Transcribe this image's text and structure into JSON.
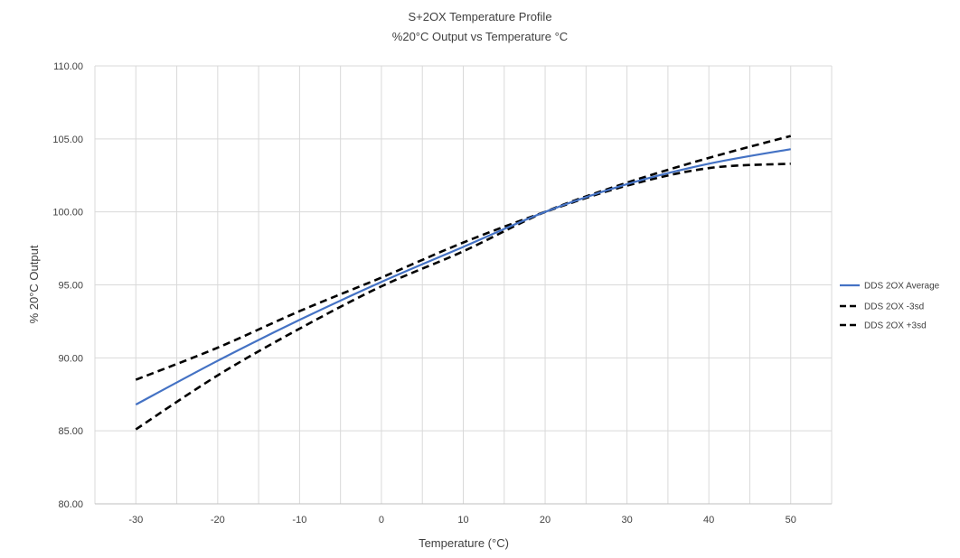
{
  "chart_data": {
    "type": "line",
    "title": "S+2OX Temperature Profile",
    "subtitle": "%20°C Output vs Temperature °C",
    "xlabel": "Temperature (°C)",
    "ylabel": "% 20°C Output",
    "xlim": [
      -35,
      55
    ],
    "ylim": [
      80,
      110
    ],
    "x_ticks": [
      -30,
      -20,
      -10,
      0,
      10,
      20,
      30,
      40,
      50
    ],
    "x_tick_labels": [
      "-30",
      "-20",
      "-10",
      "0",
      "10",
      "20",
      "30",
      "40",
      "50"
    ],
    "y_ticks": [
      80,
      85,
      90,
      95,
      100,
      105,
      110
    ],
    "y_tick_labels": [
      "80.00",
      "85.00",
      "90.00",
      "95.00",
      "100.00",
      "105.00",
      "110.00"
    ],
    "grid": true,
    "legend_position": "right",
    "x": [
      -30,
      -20,
      -10,
      0,
      10,
      20,
      30,
      40,
      50
    ],
    "series": [
      {
        "name": "DDS 2OX Average",
        "color": "#4472c4",
        "style": "solid",
        "values": [
          86.8,
          89.8,
          92.6,
          95.2,
          97.6,
          100.0,
          101.9,
          103.3,
          104.3
        ]
      },
      {
        "name": "DDS 2OX -3sd",
        "color": "#000000",
        "style": "dashed",
        "values": [
          88.5,
          90.7,
          93.2,
          95.5,
          97.9,
          100.0,
          101.8,
          103.0,
          103.3
        ]
      },
      {
        "name": "DDS 2OX +3sd",
        "color": "#000000",
        "style": "dashed",
        "values": [
          85.1,
          88.8,
          92.0,
          94.9,
          97.3,
          100.0,
          102.0,
          103.7,
          105.2
        ]
      }
    ]
  }
}
